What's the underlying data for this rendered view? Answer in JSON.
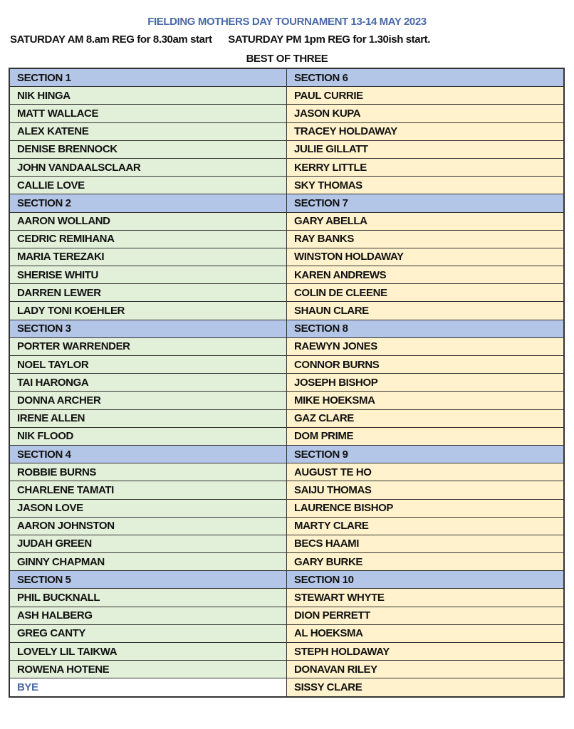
{
  "title": "FIELDING MOTHERS DAY TOURNAMENT 13-14 MAY 2023",
  "subtitle_am": "SATURDAY AM 8.am REG for 8.30am start",
  "subtitle_pm": "SATURDAY PM 1pm REG for 1.30ish start.",
  "format": "BEST OF THREE",
  "colors": {
    "section_header": "#b4c6e7",
    "left_column": "#e2efd9",
    "right_column": "#fff2cc",
    "title": "#4a69a8"
  },
  "rows": [
    {
      "type": "section",
      "left": "SECTION 1",
      "right": "SECTION 6"
    },
    {
      "left": "NIK HINGA",
      "right": "PAUL CURRIE"
    },
    {
      "left": "MATT WALLACE",
      "right": "JASON KUPA"
    },
    {
      "left": "ALEX KATENE",
      "right": "TRACEY HOLDAWAY"
    },
    {
      "left": "DENISE BRENNOCK",
      "right": "JULIE GILLATT"
    },
    {
      "left": "JOHN VANDAALSCLAAR",
      "right": "KERRY LITTLE"
    },
    {
      "left": "CALLIE LOVE",
      "right": "SKY THOMAS"
    },
    {
      "type": "section",
      "left": "SECTION 2",
      "right": "SECTION 7"
    },
    {
      "left": "AARON WOLLAND",
      "right": "GARY ABELLA"
    },
    {
      "left": "CEDRIC REMIHANA",
      "right": "RAY BANKS"
    },
    {
      "left": "MARIA TEREZAKI",
      "right": "WINSTON HOLDAWAY"
    },
    {
      "left": "SHERISE WHITU",
      "right": "KAREN ANDREWS"
    },
    {
      "left": "DARREN LEWER",
      "right": "COLIN DE CLEENE"
    },
    {
      "left": "LADY TONI KOEHLER",
      "right": "SHAUN CLARE"
    },
    {
      "type": "section",
      "left": "SECTION 3",
      "right": "SECTION 8"
    },
    {
      "left": "PORTER WARRENDER",
      "right": "RAEWYN JONES"
    },
    {
      "left": "NOEL TAYLOR",
      "right": "CONNOR BURNS"
    },
    {
      "left": "TAI HARONGA",
      "right": "JOSEPH BISHOP"
    },
    {
      "left": "DONNA ARCHER",
      "right": "MIKE HOEKSMA"
    },
    {
      "left": "IRENE ALLEN",
      "right": "GAZ CLARE"
    },
    {
      "left": "NIK FLOOD",
      "right": "DOM PRIME"
    },
    {
      "type": "section",
      "left": "SECTION 4",
      "right": "SECTION 9"
    },
    {
      "left": "ROBBIE BURNS",
      "right": "AUGUST TE HO"
    },
    {
      "left": "CHARLENE TAMATI",
      "right": "SAIJU THOMAS"
    },
    {
      "left": "JASON LOVE",
      "right": "LAURENCE BISHOP"
    },
    {
      "left": "AARON JOHNSTON",
      "right": "MARTY CLARE"
    },
    {
      "left": "JUDAH GREEN",
      "right": "BECS HAAMI"
    },
    {
      "left": "GINNY CHAPMAN",
      "right": "GARY BURKE"
    },
    {
      "type": "section",
      "left": "SECTION 5",
      "right": "SECTION 10"
    },
    {
      "left": "PHIL BUCKNALL",
      "right": "STEWART WHYTE"
    },
    {
      "left": "ASH HALBERG",
      "right": "DION PERRETT"
    },
    {
      "left": "GREG CANTY",
      "right": "AL HOEKSMA"
    },
    {
      "left": "LOVELY LIL TAIKWA",
      "right": "STEPH HOLDAWAY"
    },
    {
      "left": "ROWENA HOTENE",
      "right": "DONAVAN RILEY"
    },
    {
      "type": "bye",
      "left": "BYE",
      "right": "SISSY CLARE"
    }
  ]
}
